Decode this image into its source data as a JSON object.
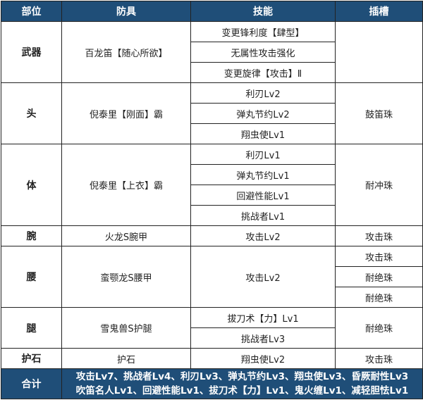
{
  "headers": [
    "部位",
    "防具",
    "技能",
    "插槽"
  ],
  "rows": [
    {
      "part": "武器",
      "armor": "百龙笛【随心所欲】",
      "skills": [
        "变更锋利度【肆型】",
        "无属性攻击强化",
        "变更旋律【攻击】Ⅱ"
      ],
      "slots": [
        ""
      ]
    },
    {
      "part": "头",
      "armor": "倪泰里【刚面】霸",
      "skills": [
        "利刃Lv2",
        "弹丸节约Lv2",
        "翔虫使Lv1"
      ],
      "slots": [
        "鼓笛珠"
      ]
    },
    {
      "part": "体",
      "armor": "倪泰里【上衣】霸",
      "skills": [
        "利刃Lv1",
        "弹丸节约Lv1",
        "回避性能Lv1",
        "挑战者Lv1"
      ],
      "slots": [
        "耐冲珠"
      ]
    },
    {
      "part": "腕",
      "armor": "火龙S腕甲",
      "skills": [
        "攻击Lv2"
      ],
      "slots": [
        "攻击珠"
      ]
    },
    {
      "part": "腰",
      "armor": "蛮颚龙S腰甲",
      "skills": [
        "攻击Lv2"
      ],
      "slots": [
        "攻击珠",
        "耐绝珠",
        "耐绝珠"
      ]
    },
    {
      "part": "腿",
      "armor": "雪鬼兽S护腿",
      "skills": [
        "拔刀术【力】Lv1",
        "挑战者Lv3"
      ],
      "slots": [
        "耐绝珠"
      ]
    },
    {
      "part": "护石",
      "armor": "护石",
      "skills": [
        "翔虫使Lv2"
      ],
      "slots": [
        "攻击珠"
      ]
    }
  ],
  "total": {
    "label": "合计",
    "lines": [
      "攻击Lv7、挑战者Lv4、利刃Lv3、弹丸节约Lv3、翔虫使Lv3、昏厥耐性Lv3",
      "吹笛名人Lv1、回避性能Lv1、拔刀术【力】Lv1、鬼火缠Lv1、减轻胆怯Lv1"
    ]
  },
  "colors": {
    "header": "#1f4e78"
  }
}
